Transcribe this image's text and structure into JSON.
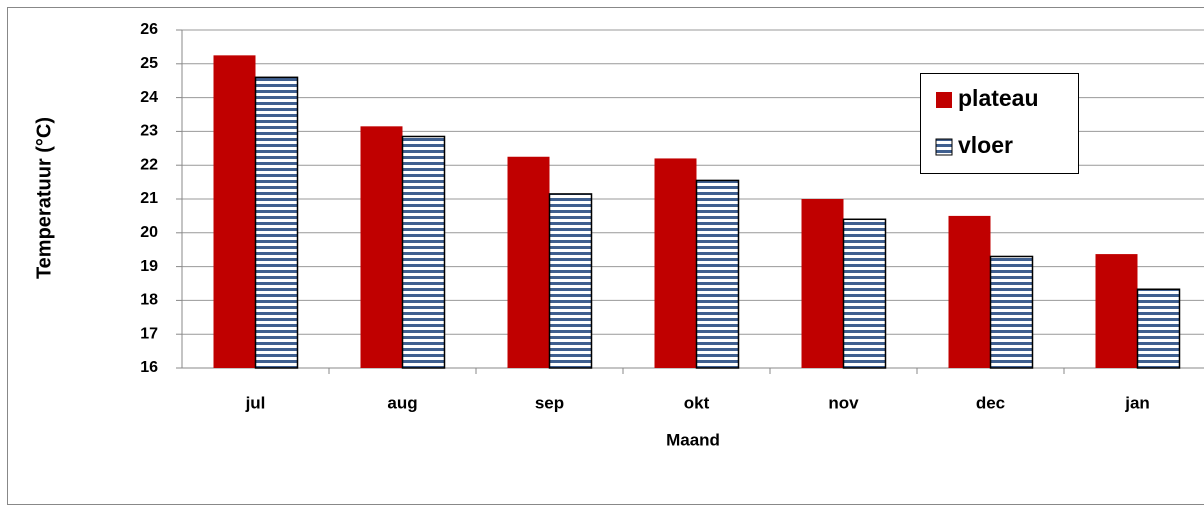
{
  "chart_data": {
    "type": "bar",
    "categories": [
      "jul",
      "aug",
      "sep",
      "okt",
      "nov",
      "dec",
      "jan"
    ],
    "series": [
      {
        "name": "plateau",
        "color": "#c00000",
        "values": [
          25.25,
          23.15,
          22.25,
          22.2,
          21.0,
          20.5,
          19.37
        ]
      },
      {
        "name": "vloer",
        "color": "#3f5f8f",
        "pattern": "horizontal-stripes",
        "values": [
          24.6,
          22.85,
          21.15,
          21.55,
          20.4,
          19.3,
          18.33
        ]
      }
    ],
    "xlabel": "Maand",
    "ylabel": "Temperatuur (°C)",
    "ylim": [
      16,
      26
    ],
    "yticks": [
      16,
      17,
      18,
      19,
      20,
      21,
      22,
      23,
      24,
      25,
      26
    ],
    "grid": true,
    "legend": "upper right"
  }
}
